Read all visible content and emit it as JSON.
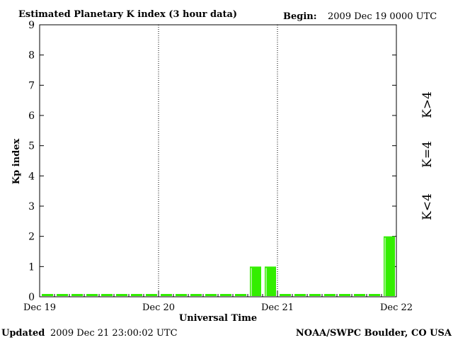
{
  "header": {
    "title": "Estimated Planetary K index (3 hour data)",
    "begin_label": "Begin:",
    "begin_value": "2009 Dec 19 0000 UTC"
  },
  "footer": {
    "updated_label": "Updated",
    "updated_value": "2009 Dec 21 23:00:02 UTC",
    "source": "NOAA/SWPC Boulder, CO USA"
  },
  "legend": [
    {
      "text": "K>4",
      "color": "#ff2a00"
    },
    {
      "text": "K=4",
      "color": "#ffcc00"
    },
    {
      "text": "K<4",
      "color": "#33ee00"
    }
  ],
  "chart_data": {
    "type": "bar",
    "title": "Estimated Planetary K index (3 hour data)",
    "xlabel": "Universal Time",
    "ylabel": "Kp index",
    "ylim": [
      0,
      9
    ],
    "yticks": [
      0,
      1,
      2,
      3,
      4,
      5,
      6,
      7,
      8,
      9
    ],
    "x_tick_labels": [
      "Dec 19",
      "Dec 20",
      "Dec 21",
      "Dec 22"
    ],
    "interval_hours": 3,
    "grid": "dotted vertical lines at day boundaries",
    "bar_color": "#33ee00",
    "values": [
      0,
      0,
      0,
      0,
      0,
      0,
      0,
      0,
      0,
      0,
      0,
      0,
      0,
      0,
      1,
      1,
      0,
      0,
      0,
      0,
      0,
      0,
      0,
      2
    ]
  }
}
